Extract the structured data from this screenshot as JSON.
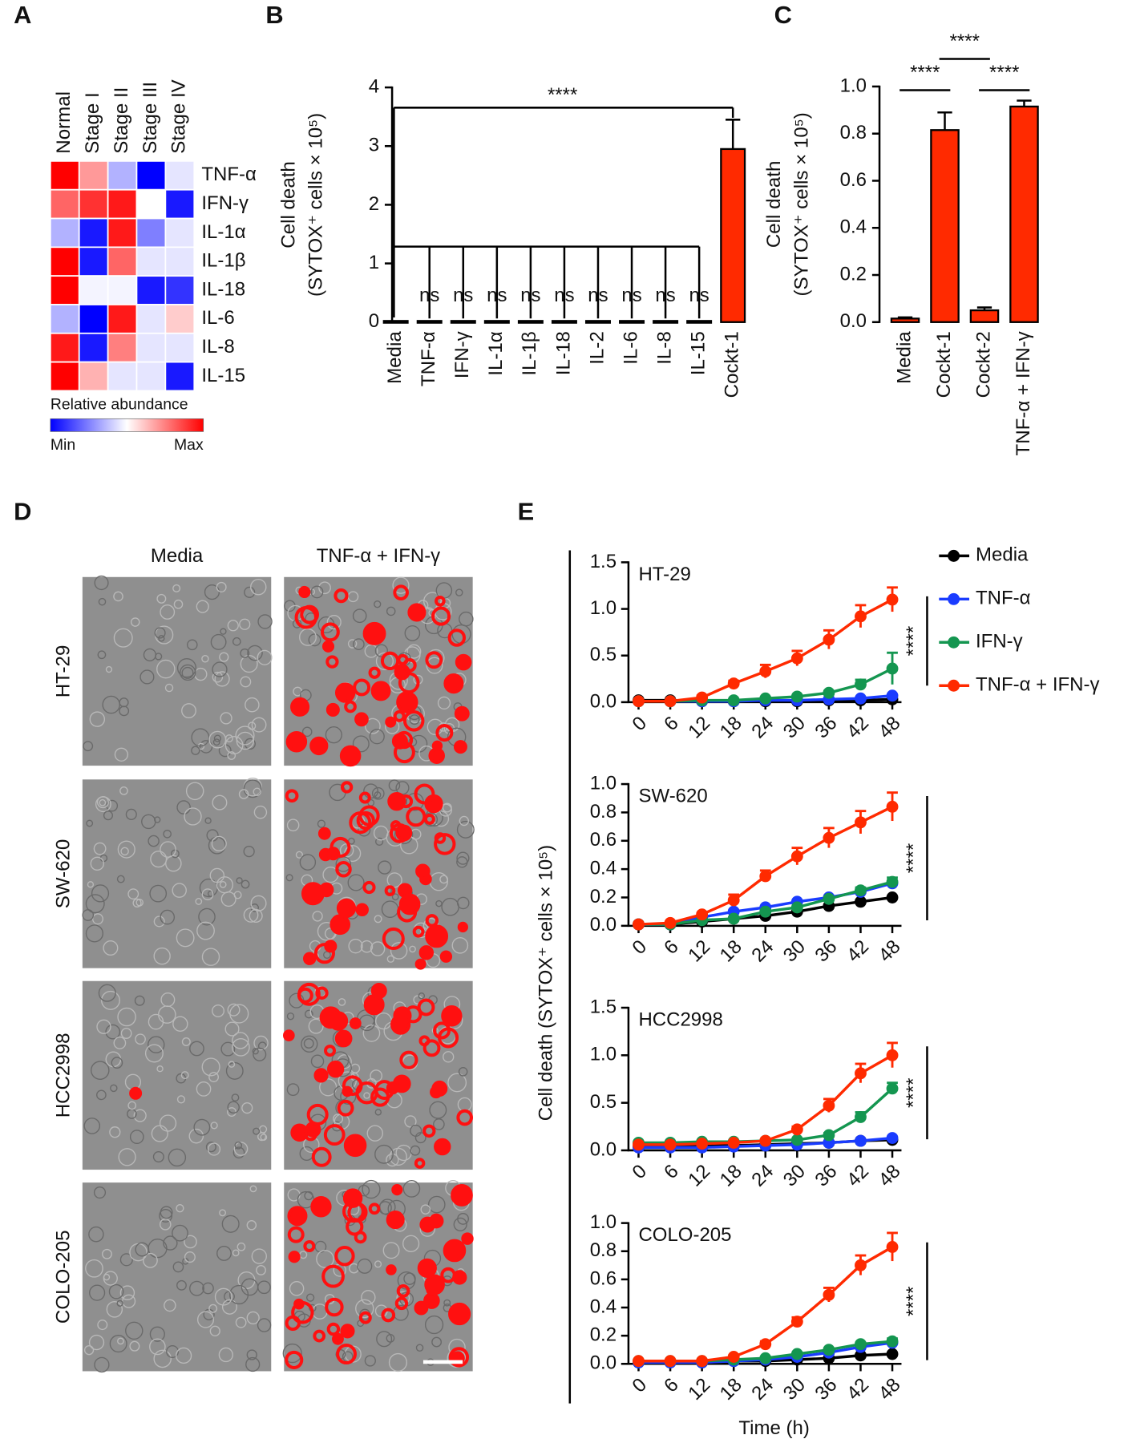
{
  "panel_labels": [
    "A",
    "B",
    "C",
    "D",
    "E"
  ],
  "chart_data": [
    {
      "type": "heatmap",
      "columns": [
        "Normal",
        "Stage I",
        "Stage II",
        "Stage III",
        "Stage IV"
      ],
      "rows": [
        "TNF-α",
        "IFN-γ",
        "IL-1α",
        "IL-1β",
        "IL-18",
        "IL-6",
        "IL-8",
        "IL-15"
      ],
      "values": [
        [
          1.0,
          0.7,
          0.35,
          0.0,
          0.45
        ],
        [
          0.8,
          0.9,
          0.95,
          0.5,
          0.05
        ],
        [
          0.35,
          0.05,
          0.95,
          0.25,
          0.45
        ],
        [
          1.0,
          0.05,
          0.8,
          0.45,
          0.45
        ],
        [
          1.0,
          0.48,
          0.48,
          0.05,
          0.1
        ],
        [
          0.35,
          0.0,
          0.95,
          0.45,
          0.6
        ],
        [
          0.95,
          0.05,
          0.75,
          0.45,
          0.45
        ],
        [
          1.0,
          0.65,
          0.45,
          0.45,
          0.05
        ]
      ],
      "clim": [
        0,
        1
      ],
      "colorbar_label": "Relative abundance",
      "colorbar_min_label": "Min",
      "colorbar_max_label": "Max"
    },
    {
      "type": "bar",
      "ylabel": [
        "Cell death",
        "(SYTOX⁺ cells × 10⁵)"
      ],
      "categories": [
        "Media",
        "TNF-α",
        "IFN-γ",
        "IL-1α",
        "IL-1β",
        "IL-18",
        "IL-2",
        "IL-6",
        "IL-8",
        "IL-15",
        "Cockt-1"
      ],
      "values": [
        0.02,
        0.02,
        0.02,
        0.02,
        0.02,
        0.02,
        0.02,
        0.02,
        0.02,
        0.02,
        2.95
      ],
      "errors": [
        0,
        0,
        0,
        0,
        0,
        0,
        0,
        0,
        0,
        0,
        0.5
      ],
      "color": "#ff2a00",
      "ylim": [
        0,
        4
      ],
      "yticks": [
        0,
        1,
        2,
        3,
        4
      ],
      "pair_labels": [
        null,
        "ns",
        "ns",
        "ns",
        "ns",
        "ns",
        "ns",
        "ns",
        "ns",
        "ns",
        null
      ],
      "bracket_labels": [
        "****"
      ]
    },
    {
      "type": "bar",
      "ylabel": [
        "Cell death",
        "(SYTOX⁺ cells × 10⁵)"
      ],
      "categories": [
        "Media",
        "Cockt-1",
        "Cockt-2",
        "TNF-α + IFN-γ"
      ],
      "values": [
        0.015,
        0.815,
        0.05,
        0.915
      ],
      "errors": [
        0.005,
        0.075,
        0.012,
        0.025
      ],
      "color": "#ff2a00",
      "ylim": [
        0,
        1
      ],
      "yticks": [
        {
          "value": 0,
          "label": "0.0"
        },
        0.2,
        0.4,
        0.6,
        0.8,
        {
          "value": 1,
          "label": "1.0"
        }
      ],
      "bracket_labels": [
        "****",
        "****",
        "****"
      ]
    },
    {
      "type": "images",
      "columns": [
        "Media",
        "TNF-α + IFN-γ"
      ],
      "rows": [
        "HT-29",
        "SW-620",
        "HCC2998",
        "COLO-205"
      ]
    },
    {
      "type": "line",
      "title": "HT-29",
      "x": [
        0,
        6,
        12,
        18,
        24,
        30,
        36,
        42,
        48
      ],
      "xlim": [
        0,
        48
      ],
      "xticks": [
        0,
        6,
        12,
        18,
        24,
        30,
        36,
        42,
        48
      ],
      "ylim": [
        0,
        1.5
      ],
      "yticks": [
        {
          "value": 0,
          "label": "0.0"
        },
        0.5,
        {
          "value": 1,
          "label": "1.0"
        },
        1.5
      ],
      "significance": "****",
      "ylabel": "Cell death (SYTOX⁺ cells × 10⁵)",
      "series": [
        {
          "name": "Media",
          "color": "#000000",
          "values": [
            0.02,
            0.02,
            0.01,
            0.01,
            0.01,
            0.01,
            0.02,
            0.02,
            0.03
          ]
        },
        {
          "name": "TNF-α",
          "color": "#1a3cff",
          "values": [
            0.01,
            0.01,
            0.01,
            0.01,
            0.02,
            0.02,
            0.03,
            0.04,
            0.07
          ]
        },
        {
          "name": "IFN-γ",
          "color": "#149650",
          "values": [
            0.01,
            0.01,
            0.02,
            0.02,
            0.04,
            0.06,
            0.1,
            0.19,
            0.36
          ],
          "errors": [
            0,
            0,
            0,
            0,
            0.01,
            0.01,
            0.02,
            0.05,
            0.17
          ]
        },
        {
          "name": "TNF-α + IFN-γ",
          "color": "#ff2a00",
          "values": [
            0.01,
            0.01,
            0.05,
            0.2,
            0.33,
            0.47,
            0.67,
            0.92,
            1.1
          ],
          "errors": [
            0,
            0,
            0.02,
            0.03,
            0.07,
            0.08,
            0.1,
            0.12,
            0.13
          ]
        }
      ]
    },
    {
      "type": "line",
      "title": "SW-620",
      "x": [
        0,
        6,
        12,
        18,
        24,
        30,
        36,
        42,
        48
      ],
      "xlim": [
        0,
        48
      ],
      "xticks": [
        0,
        6,
        12,
        18,
        24,
        30,
        36,
        42,
        48
      ],
      "ylim": [
        0,
        1
      ],
      "yticks": [
        {
          "value": 0,
          "label": "0.0"
        },
        0.2,
        0.4,
        0.6,
        0.8,
        {
          "value": 1,
          "label": "1.0"
        }
      ],
      "significance": "****",
      "series": [
        {
          "name": "Media",
          "color": "#000000",
          "values": [
            0.01,
            0.01,
            0.03,
            0.05,
            0.07,
            0.1,
            0.14,
            0.17,
            0.2
          ]
        },
        {
          "name": "TNF-α",
          "color": "#1a3cff",
          "values": [
            0.01,
            0.01,
            0.06,
            0.1,
            0.13,
            0.17,
            0.2,
            0.24,
            0.3
          ]
        },
        {
          "name": "IFN-γ",
          "color": "#149650",
          "values": [
            0.01,
            0.01,
            0.04,
            0.05,
            0.1,
            0.13,
            0.19,
            0.25,
            0.31
          ],
          "errors": [
            0,
            0,
            0,
            0,
            0.01,
            0.01,
            0.01,
            0.02,
            0.03
          ]
        },
        {
          "name": "TNF-α + IFN-γ",
          "color": "#ff2a00",
          "values": [
            0.01,
            0.02,
            0.08,
            0.18,
            0.35,
            0.49,
            0.62,
            0.73,
            0.84
          ],
          "errors": [
            0,
            0,
            0.01,
            0.04,
            0.04,
            0.06,
            0.07,
            0.08,
            0.1
          ]
        }
      ]
    },
    {
      "type": "line",
      "title": "HCC2998",
      "x": [
        0,
        6,
        12,
        18,
        24,
        30,
        36,
        42,
        48
      ],
      "xlim": [
        0,
        48
      ],
      "xticks": [
        0,
        6,
        12,
        18,
        24,
        30,
        36,
        42,
        48
      ],
      "ylim": [
        0,
        1.5
      ],
      "yticks": [
        {
          "value": 0,
          "label": "0.0"
        },
        0.5,
        {
          "value": 1,
          "label": "1.0"
        },
        1.5
      ],
      "significance": "****",
      "series": [
        {
          "name": "Media",
          "color": "#000000",
          "values": [
            0.04,
            0.04,
            0.05,
            0.05,
            0.06,
            0.07,
            0.08,
            0.1,
            0.11
          ]
        },
        {
          "name": "TNF-α",
          "color": "#1a3cff",
          "values": [
            0.03,
            0.03,
            0.03,
            0.04,
            0.05,
            0.06,
            0.08,
            0.1,
            0.13
          ]
        },
        {
          "name": "IFN-γ",
          "color": "#149650",
          "values": [
            0.08,
            0.08,
            0.09,
            0.09,
            0.1,
            0.11,
            0.16,
            0.35,
            0.65
          ],
          "errors": [
            0,
            0,
            0,
            0,
            0,
            0.01,
            0.02,
            0.05,
            0.06
          ]
        },
        {
          "name": "TNF-α + IFN-γ",
          "color": "#ff2a00",
          "values": [
            0.06,
            0.06,
            0.07,
            0.08,
            0.1,
            0.22,
            0.47,
            0.81,
            1.0
          ],
          "errors": [
            0,
            0,
            0,
            0,
            0.01,
            0.03,
            0.07,
            0.1,
            0.13
          ]
        }
      ]
    },
    {
      "type": "line",
      "title": "COLO-205",
      "x": [
        0,
        6,
        12,
        18,
        24,
        30,
        36,
        42,
        48
      ],
      "xlim": [
        0,
        48
      ],
      "xticks": [
        0,
        6,
        12,
        18,
        24,
        30,
        36,
        42,
        48
      ],
      "ylim": [
        0,
        1
      ],
      "yticks": [
        {
          "value": 0,
          "label": "0.0"
        },
        0.2,
        0.4,
        0.6,
        0.8,
        {
          "value": 1,
          "label": "1.0"
        }
      ],
      "significance": "****",
      "xlabel": "Time (h)",
      "series": [
        {
          "name": "Media",
          "color": "#000000",
          "values": [
            0.01,
            0.01,
            0.01,
            0.02,
            0.02,
            0.03,
            0.04,
            0.06,
            0.07
          ]
        },
        {
          "name": "TNF-α",
          "color": "#1a3cff",
          "values": [
            0.01,
            0.01,
            0.01,
            0.02,
            0.03,
            0.05,
            0.08,
            0.12,
            0.15
          ]
        },
        {
          "name": "IFN-γ",
          "color": "#149650",
          "values": [
            0.02,
            0.02,
            0.02,
            0.03,
            0.04,
            0.07,
            0.1,
            0.14,
            0.16
          ],
          "errors": [
            0,
            0,
            0,
            0,
            0,
            0.01,
            0.01,
            0.01,
            0.02
          ]
        },
        {
          "name": "TNF-α + IFN-γ",
          "color": "#ff2a00",
          "values": [
            0.02,
            0.02,
            0.02,
            0.05,
            0.14,
            0.3,
            0.49,
            0.7,
            0.83
          ],
          "errors": [
            0,
            0,
            0,
            0.01,
            0.02,
            0.03,
            0.05,
            0.07,
            0.1
          ]
        }
      ]
    }
  ]
}
